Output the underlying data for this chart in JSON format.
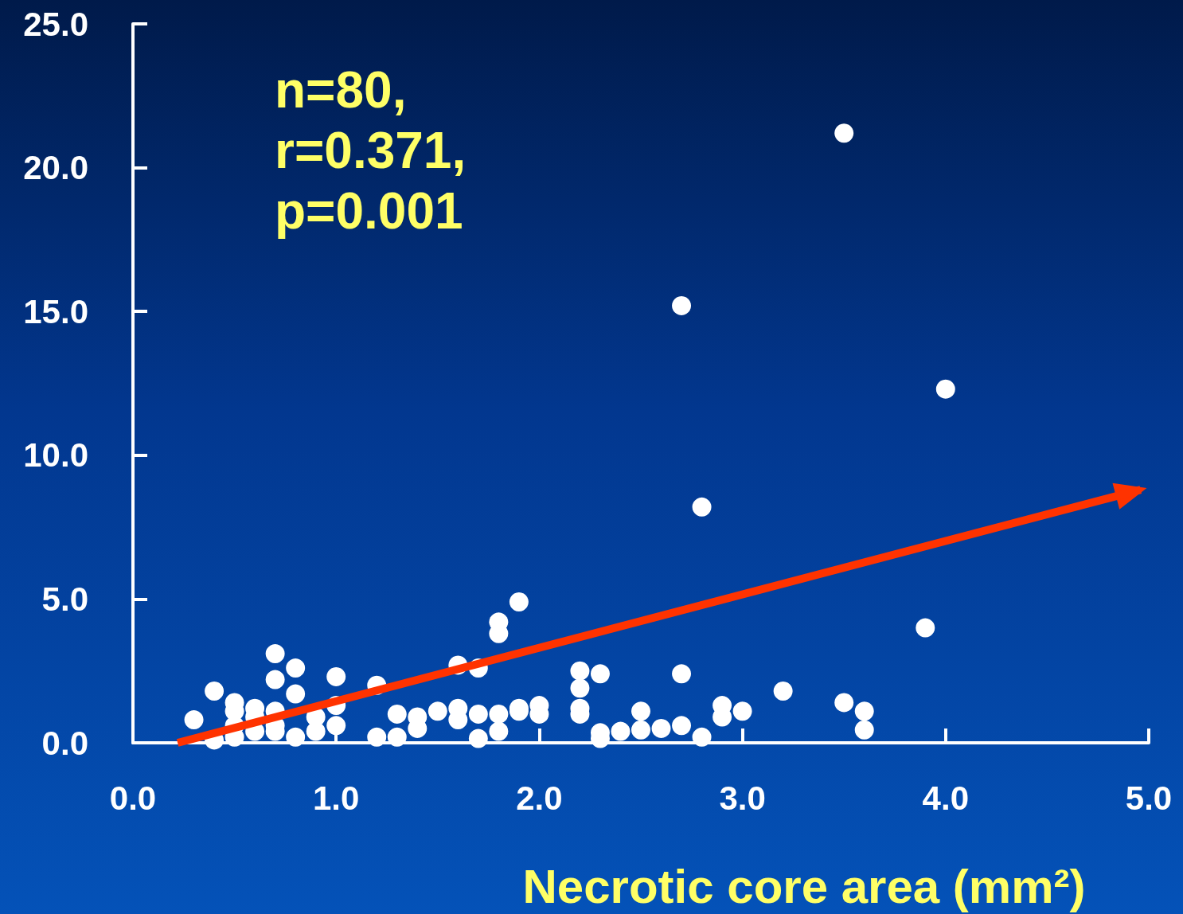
{
  "chart_data": {
    "type": "scatter",
    "xlabel": "Necrotic core area (mm²)",
    "annotations": [
      "n=80,\nr=0.371,\np=0.001"
    ],
    "xlim": [
      0,
      5
    ],
    "ylim": [
      0,
      25
    ],
    "xticks": [
      {
        "value": 0,
        "label": "0.0"
      },
      {
        "value": 1,
        "label": "1.0"
      },
      {
        "value": 2,
        "label": "2.0"
      },
      {
        "value": 3,
        "label": "3.0"
      },
      {
        "value": 4,
        "label": "4.0"
      },
      {
        "value": 5,
        "label": "5.0"
      }
    ],
    "yticks": [
      {
        "value": 0,
        "label": "0.0"
      },
      {
        "value": 5,
        "label": "5.0"
      },
      {
        "value": 10,
        "label": "10.0"
      },
      {
        "value": 15,
        "label": "15.0"
      },
      {
        "value": 20,
        "label": "20.0"
      },
      {
        "value": 25,
        "label": "25.0"
      }
    ],
    "grid": false,
    "series": [
      {
        "color": "#ffffff",
        "marker": "circle",
        "x": [
          0.3,
          0.4,
          0.4,
          0.5,
          0.5,
          0.5,
          0.5,
          0.6,
          0.6,
          0.6,
          0.7,
          0.7,
          0.7,
          0.7,
          0.7,
          0.8,
          0.8,
          0.8,
          0.9,
          0.9,
          1.0,
          1.0,
          1.0,
          1.2,
          1.2,
          1.3,
          1.3,
          1.4,
          1.4,
          1.5,
          1.6,
          1.6,
          1.6,
          1.7,
          1.7,
          1.7,
          1.8,
          1.8,
          1.8,
          1.8,
          1.9,
          1.9,
          1.9,
          2.0,
          2.0,
          2.2,
          2.2,
          2.2,
          2.2,
          2.3,
          2.3,
          2.3,
          2.4,
          2.5,
          2.5,
          2.6,
          2.7,
          2.7,
          2.7,
          2.8,
          2.8,
          2.9,
          2.9,
          3.0,
          3.2,
          3.5,
          3.5,
          3.6,
          3.6,
          3.9,
          4.0
        ],
        "values": [
          0.8,
          1.8,
          0.1,
          1.4,
          1.1,
          0.6,
          0.2,
          1.2,
          0.9,
          0.4,
          3.1,
          2.2,
          1.1,
          0.6,
          0.4,
          2.6,
          1.7,
          0.2,
          0.9,
          0.4,
          2.3,
          1.3,
          0.6,
          2.0,
          0.2,
          1.0,
          0.2,
          0.9,
          0.5,
          1.1,
          2.7,
          1.2,
          0.8,
          2.6,
          1.0,
          0.15,
          4.2,
          3.8,
          1.0,
          0.4,
          4.9,
          1.2,
          1.1,
          1.3,
          1.0,
          2.5,
          1.9,
          1.2,
          1.0,
          2.4,
          0.35,
          0.15,
          0.4,
          1.1,
          0.45,
          0.5,
          15.2,
          2.4,
          0.6,
          8.2,
          0.2,
          1.3,
          0.9,
          1.1,
          1.8,
          21.2,
          1.4,
          1.1,
          0.45,
          4.0,
          12.3
        ]
      },
      {
        "type": "line",
        "color": "#ff3300",
        "marker": "none",
        "line_style": "solid",
        "x": [
          0.22,
          4.96
        ],
        "values": [
          0,
          8.8
        ]
      }
    ]
  }
}
